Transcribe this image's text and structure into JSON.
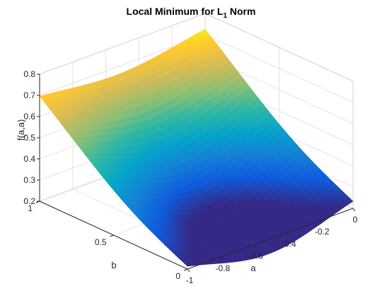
{
  "chart_data": {
    "type": "surface",
    "title": "Local Minimum for L",
    "title_subscript": "1",
    "title_suffix": " Norm",
    "xlabel": "a",
    "ylabel": "b",
    "zlabel": "f(a,a)",
    "xlim": [
      -1,
      0
    ],
    "ylim": [
      0,
      1
    ],
    "zlim": [
      0.2,
      0.8
    ],
    "x_ticks": [
      -1,
      -0.8,
      -0.6,
      -0.4,
      -0.2,
      0
    ],
    "x_tick_labels": [
      "-1",
      "-0.8",
      "-0.6",
      "-0.4",
      "-0.2",
      "0"
    ],
    "y_ticks": [
      0,
      0.5,
      1
    ],
    "y_tick_labels": [
      "0",
      "0.5",
      "1"
    ],
    "z_ticks": [
      0.2,
      0.3,
      0.4,
      0.5,
      0.6,
      0.7,
      0.8
    ],
    "z_tick_labels": [
      "0.2",
      "0.3",
      "0.4",
      "0.5",
      "0.6",
      "0.7",
      "0.8"
    ],
    "grid": true,
    "box": true,
    "colormap": "parula",
    "colormap_stops": [
      "#352a87",
      "#0f5cdd",
      "#1481d6",
      "#06a4ca",
      "#2eb7a4",
      "#87bf77",
      "#d1bb59",
      "#fec832",
      "#f9fb0e"
    ],
    "surface_corners": [
      {
        "a": -1,
        "b": 1,
        "f": 0.72
      },
      {
        "a": -1,
        "b": 0,
        "f": 0.26
      },
      {
        "a": 0,
        "b": 1,
        "f": 0.75
      },
      {
        "a": 0,
        "b": 0,
        "f": 0.28
      }
    ],
    "minimum": {
      "a": -0.5,
      "b": 0.4,
      "f": 0.22
    }
  }
}
